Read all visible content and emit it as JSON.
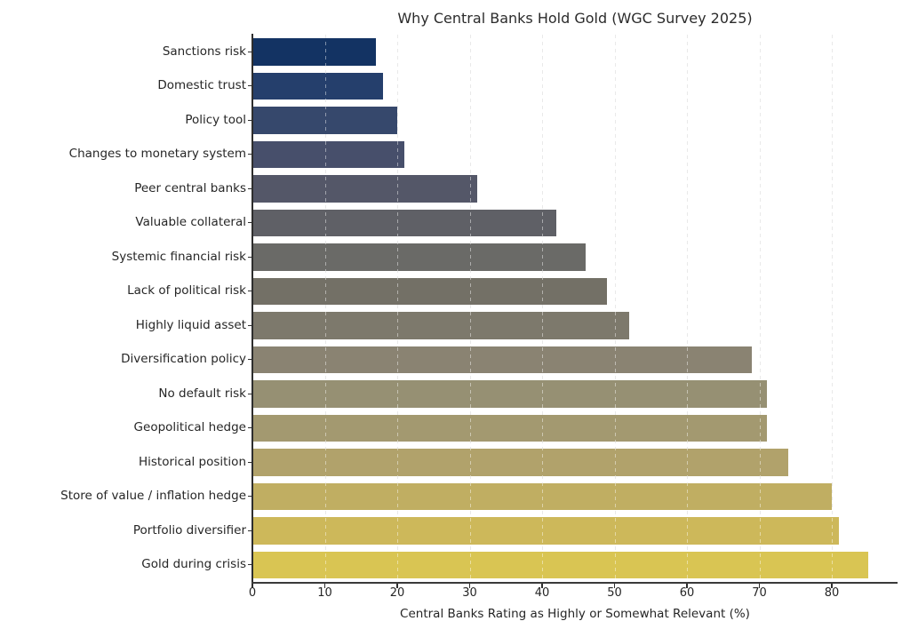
{
  "chart_data": {
    "type": "bar",
    "orientation": "horizontal",
    "title": "Why Central Banks Hold Gold (WGC Survey 2025)",
    "xlabel": "Central Banks Rating as Highly or Somewhat Relevant (%)",
    "ylabel": "",
    "categories": [
      "Sanctions risk",
      "Domestic trust",
      "Policy tool",
      "Changes to monetary system",
      "Peer central banks",
      "Valuable collateral",
      "Systemic financial risk",
      "Lack of political risk",
      "Highly liquid asset",
      "Diversification policy",
      "No default risk",
      "Geopolitical hedge",
      "Historical position",
      "Store of value / inflation hedge",
      "Portfolio diversifier",
      "Gold during crisis"
    ],
    "values": [
      17,
      18,
      20,
      21,
      31,
      42,
      46,
      49,
      52,
      69,
      71,
      71,
      74,
      80,
      81,
      85
    ],
    "bar_colors": [
      "#133363",
      "#253f6c",
      "#36486c",
      "#474f6b",
      "#545768",
      "#5f6066",
      "#6a6a67",
      "#737066",
      "#7d796c",
      "#8a8372",
      "#969073",
      "#a39970",
      "#b1a26b",
      "#c0ae62",
      "#cdb85a",
      "#d9c553"
    ],
    "xticks": [
      0,
      10,
      20,
      30,
      40,
      50,
      60,
      70,
      80
    ],
    "xlim": [
      0,
      89
    ],
    "grid": "vertical-dashed",
    "legend": "none"
  },
  "colors": {
    "background": "#ffffff",
    "text": "#262626",
    "spine": "#333333",
    "grid": "#d7d7d7"
  }
}
